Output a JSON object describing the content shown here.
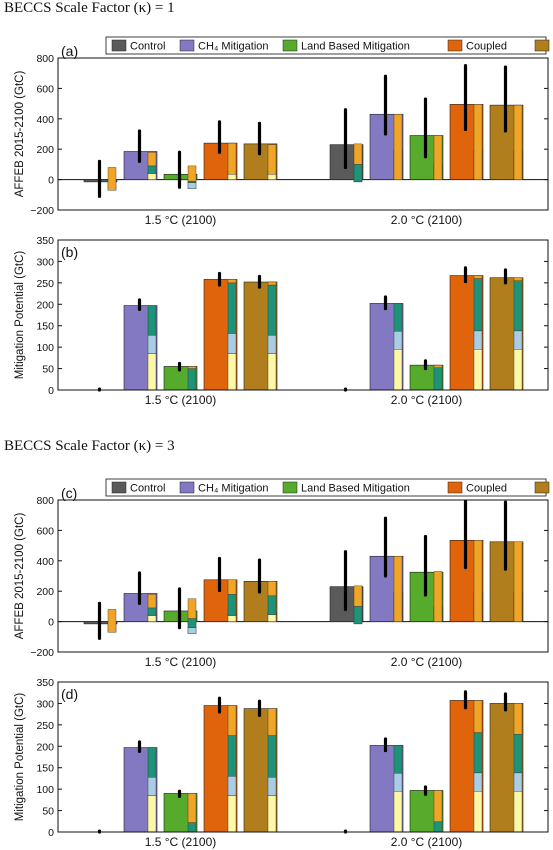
{
  "sections": [
    {
      "title": "BECCS Scale Factor (κ) = 1"
    },
    {
      "title": "BECCS Scale Factor (κ) = 3"
    }
  ],
  "colors": {
    "Control": "#5a5a5a",
    "CH4 Mitigation": "#8279c2",
    "Land Based Mitigation": "#56aa2c",
    "Coupled": "#e0640c",
    "Linear": "#b07e1c",
    "stack_yellow": "#fdf7a6",
    "stack_lightblue": "#a9cde4",
    "stack_teal": "#1f9378",
    "stack_orange": "#f0a527"
  },
  "legend": [
    "Control",
    "CH₄ Mitigation",
    "Land Based Mitigation",
    "Coupled",
    "Linear"
  ],
  "chart_data": [
    {
      "panel": "(a)",
      "type": "bar",
      "ylabel": "AFFEB 2015-2100 (GtC)",
      "ylim": [
        -200,
        800
      ],
      "yticks": [
        -200,
        0,
        200,
        400,
        600,
        800
      ],
      "categories": [
        "1.5 °C (2100)",
        "2.0 °C (2100)"
      ],
      "series": [
        {
          "name": "Control",
          "values": [
            -15,
            230
          ],
          "stack": [
            [
              0,
              -15,
              -70,
              80
            ],
            [
              0,
              -15,
              100,
              235
            ]
          ],
          "err": [
            [
              -110,
              120
            ],
            [
              80,
              460
            ]
          ]
        },
        {
          "name": "CH₄ Mitigation",
          "values": [
            185,
            430
          ],
          "stack": [
            [
              50,
              40,
              90,
              180
            ],
            [
              195,
              185,
              0,
              430
            ]
          ],
          "err": [
            [
              120,
              320
            ],
            [
              300,
              680
            ]
          ]
        },
        {
          "name": "Land Based Mitigation",
          "values": [
            35,
            290
          ],
          "stack": [
            [
              -60,
              -20,
              -10,
              90
            ],
            [
              100,
              95,
              0,
              290
            ]
          ],
          "err": [
            [
              -50,
              180
            ],
            [
              150,
              530
            ]
          ]
        },
        {
          "name": "Coupled",
          "values": [
            240,
            495
          ],
          "stack": [
            [
              55,
              40,
              35,
              240
            ],
            [
              195,
              180,
              0,
              495
            ]
          ],
          "err": [
            [
              180,
              380
            ],
            [
              330,
              750
            ]
          ]
        },
        {
          "name": "Linear",
          "values": [
            235,
            490
          ],
          "stack": [
            [
              60,
              45,
              35,
              230
            ],
            [
              195,
              180,
              0,
              490
            ]
          ],
          "err": [
            [
              170,
              370
            ],
            [
              320,
              740
            ]
          ]
        }
      ]
    },
    {
      "panel": "(b)",
      "type": "bar",
      "ylabel": "Mitigation Potential (GtC)",
      "ylim": [
        0,
        350
      ],
      "yticks": [
        0,
        50,
        100,
        150,
        200,
        250,
        300,
        350
      ],
      "categories": [
        "1.5 °C (2100)",
        "2.0 °C (2100)"
      ],
      "series": [
        {
          "name": "Control",
          "values": [
            0,
            0
          ],
          "stack": [
            [
              0,
              0,
              0,
              0
            ],
            [
              0,
              0,
              0,
              0
            ]
          ],
          "err": [
            [
              0,
              2
            ],
            [
              0,
              2
            ]
          ]
        },
        {
          "name": "CH₄ Mitigation",
          "values": [
            197,
            202
          ],
          "stack": [
            [
              85,
              128,
              197,
              197
            ],
            [
              95,
              137,
              202,
              202
            ]
          ],
          "err": [
            [
              188,
              210
            ],
            [
              190,
              217
            ]
          ]
        },
        {
          "name": "Land Based Mitigation",
          "values": [
            55,
            58
          ],
          "stack": [
            [
              0,
              0,
              50,
              55
            ],
            [
              0,
              0,
              52,
              58
            ]
          ],
          "err": [
            [
              47,
              62
            ],
            [
              50,
              68
            ]
          ]
        },
        {
          "name": "Coupled",
          "values": [
            258,
            267
          ],
          "stack": [
            [
              85,
              132,
              250,
              258
            ],
            [
              95,
              138,
              260,
              267
            ]
          ],
          "err": [
            [
              245,
              272
            ],
            [
              253,
              285
            ]
          ]
        },
        {
          "name": "Linear",
          "values": [
            252,
            262
          ],
          "stack": [
            [
              85,
              128,
              245,
              252
            ],
            [
              95,
              138,
              255,
              262
            ]
          ],
          "err": [
            [
              240,
              265
            ],
            [
              250,
              280
            ]
          ]
        }
      ]
    },
    {
      "panel": "(c)",
      "type": "bar",
      "ylabel": "AFFEB 2015-2100 (GtC)",
      "ylim": [
        -200,
        800
      ],
      "yticks": [
        -200,
        0,
        200,
        400,
        600,
        800
      ],
      "categories": [
        "1.5 °C (2100)",
        "2.0 °C (2100)"
      ],
      "series": [
        {
          "name": "Control",
          "values": [
            -15,
            230
          ],
          "stack": [
            [
              0,
              -15,
              -70,
              80
            ],
            [
              0,
              -15,
              100,
              235
            ]
          ],
          "err": [
            [
              -110,
              120
            ],
            [
              80,
              460
            ]
          ]
        },
        {
          "name": "CH₄ Mitigation",
          "values": [
            185,
            430
          ],
          "stack": [
            [
              50,
              40,
              90,
              180
            ],
            [
              195,
              185,
              0,
              430
            ]
          ],
          "err": [
            [
              120,
              320
            ],
            [
              300,
              680
            ]
          ]
        },
        {
          "name": "Land Based Mitigation",
          "values": [
            70,
            325
          ],
          "stack": [
            [
              -80,
              -40,
              20,
              150
            ],
            [
              100,
              95,
              0,
              330
            ]
          ],
          "err": [
            [
              -40,
              215
            ],
            [
              175,
              560
            ]
          ]
        },
        {
          "name": "Coupled",
          "values": [
            275,
            535
          ],
          "stack": [
            [
              55,
              40,
              180,
              275
            ],
            [
              195,
              180,
              0,
              535
            ]
          ],
          "err": [
            [
              205,
              415
            ],
            [
              355,
              790
            ]
          ]
        },
        {
          "name": "Linear",
          "values": [
            265,
            525
          ],
          "stack": [
            [
              60,
              45,
              170,
              265
            ],
            [
              195,
              180,
              0,
              525
            ]
          ],
          "err": [
            [
              195,
              405
            ],
            [
              345,
              785
            ]
          ]
        }
      ]
    },
    {
      "panel": "(d)",
      "type": "bar",
      "ylabel": "Mitigation Potential (GtC)",
      "ylim": [
        0,
        350
      ],
      "yticks": [
        0,
        50,
        100,
        150,
        200,
        250,
        300,
        350
      ],
      "categories": [
        "1.5 °C (2100)",
        "2.0 °C (2100)"
      ],
      "series": [
        {
          "name": "Control",
          "values": [
            0,
            0
          ],
          "stack": [
            [
              0,
              0,
              0,
              0
            ],
            [
              0,
              0,
              0,
              0
            ]
          ],
          "err": [
            [
              0,
              2
            ],
            [
              0,
              2
            ]
          ]
        },
        {
          "name": "CH₄ Mitigation",
          "values": [
            197,
            202
          ],
          "stack": [
            [
              85,
              128,
              197,
              197
            ],
            [
              95,
              137,
              202,
              202
            ]
          ],
          "err": [
            [
              188,
              210
            ],
            [
              190,
              217
            ]
          ]
        },
        {
          "name": "Land Based Mitigation",
          "values": [
            90,
            97
          ],
          "stack": [
            [
              0,
              0,
              22,
              90
            ],
            [
              0,
              0,
              24,
              97
            ]
          ],
          "err": [
            [
              83,
              95
            ],
            [
              88,
              105
            ]
          ]
        },
        {
          "name": "Coupled",
          "values": [
            295,
            307
          ],
          "stack": [
            [
              85,
              130,
              225,
              295
            ],
            [
              95,
              138,
              232,
              307
            ]
          ],
          "err": [
            [
              280,
              312
            ],
            [
              290,
              327
            ]
          ]
        },
        {
          "name": "Linear",
          "values": [
            288,
            300
          ],
          "stack": [
            [
              85,
              128,
              225,
              288
            ],
            [
              95,
              138,
              228,
              300
            ]
          ],
          "err": [
            [
              272,
              305
            ],
            [
              285,
              322
            ]
          ]
        }
      ]
    }
  ]
}
